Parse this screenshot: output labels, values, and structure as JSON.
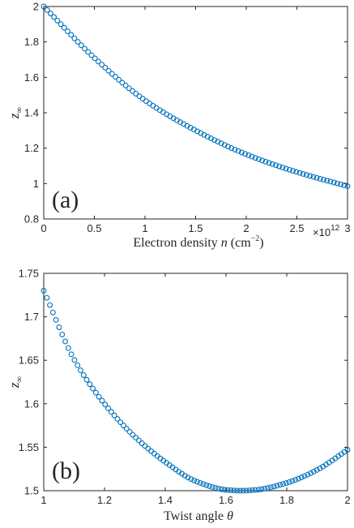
{
  "chart_data": [
    {
      "type": "scatter",
      "panel_label": "(a)",
      "xlabel": {
        "prefix": "Electron density ",
        "var": "n",
        "units": " (cm",
        "units_exp": "−2",
        "units_close": ")"
      },
      "ylabel": {
        "var": "z",
        "sub": "∞"
      },
      "x_multiplier": {
        "base": "×10",
        "exp": "12"
      },
      "xlim": [
        0,
        3
      ],
      "ylim": [
        0.8,
        2
      ],
      "xticks": [
        "0",
        "0.5",
        "1",
        "1.5",
        "2",
        "2.5",
        "3"
      ],
      "yticks": [
        "0.8",
        "1",
        "1.2",
        "1.4",
        "1.6",
        "1.8",
        "2"
      ],
      "grid": false,
      "marker": "circle-open",
      "color": "#0072BD",
      "series": [
        {
          "x": [
            0,
            0.5,
            1,
            1.5,
            2,
            2.5,
            3
          ],
          "y": [
            2.0,
            1.71,
            1.47,
            1.3,
            1.165,
            1.065,
            0.985
          ]
        }
      ]
    },
    {
      "type": "scatter",
      "panel_label": "(b)",
      "xlabel": {
        "prefix": "Twist angle ",
        "var": "θ"
      },
      "ylabel": {
        "var": "z",
        "sub": "∞"
      },
      "xlim": [
        1,
        2
      ],
      "ylim": [
        1.5,
        1.75
      ],
      "xticks": [
        "1",
        "1.2",
        "1.4",
        "1.6",
        "1.8",
        "2"
      ],
      "yticks": [
        "1.5",
        "1.55",
        "1.6",
        "1.65",
        "1.7",
        "1.75"
      ],
      "grid": false,
      "marker": "circle-open",
      "color": "#0072BD",
      "series": [
        {
          "x": [
            1.0,
            1.1,
            1.2,
            1.3,
            1.4,
            1.5,
            1.6,
            1.65,
            1.7,
            1.8,
            1.9,
            2.0
          ],
          "y": [
            1.73,
            1.651,
            1.6,
            1.562,
            1.533,
            1.511,
            1.501,
            1.5,
            1.501,
            1.509,
            1.524,
            1.547
          ]
        }
      ]
    }
  ]
}
